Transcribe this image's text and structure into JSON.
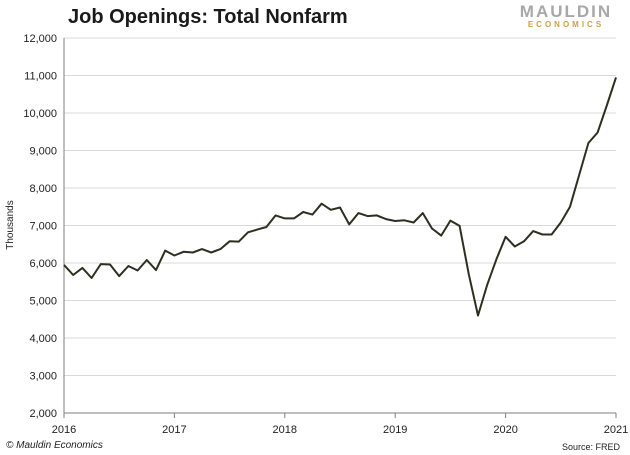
{
  "header": {
    "title": "Job Openings: Total Nonfarm",
    "logo_top": "MAULDIN",
    "logo_bottom": "ECONOMICS"
  },
  "footer": {
    "copyright": "© Mauldin Economics",
    "source": "Source: FRED"
  },
  "colors": {
    "line": "#2b3020",
    "grid": "#d9d9d9",
    "axis": "#7f7f7f",
    "logo_gray": "#a8a8a8",
    "logo_gold": "#c9a24a"
  },
  "chart_data": {
    "type": "line",
    "title": "Job Openings: Total Nonfarm",
    "xlabel": "",
    "ylabel": "Thousands",
    "ylim": [
      2000,
      12000
    ],
    "xlim": [
      2016.0,
      2021.0
    ],
    "yticks": [
      "2,000",
      "3,000",
      "4,000",
      "5,000",
      "6,000",
      "7,000",
      "8,000",
      "9,000",
      "10,000",
      "11,000",
      "12,000"
    ],
    "xticks": [
      "2016",
      "2017",
      "2018",
      "2019",
      "2020",
      "2021"
    ],
    "grid": true,
    "legend": "none",
    "series": [
      {
        "x": [
          "2016-01",
          "2016-02",
          "2016-03",
          "2016-04",
          "2016-05",
          "2016-06",
          "2016-07",
          "2016-08",
          "2016-09",
          "2016-10",
          "2016-11",
          "2016-12",
          "2017-01",
          "2017-02",
          "2017-03",
          "2017-04",
          "2017-05",
          "2017-06",
          "2017-07",
          "2017-08",
          "2017-09",
          "2017-10",
          "2017-11",
          "2017-12",
          "2018-01",
          "2018-02",
          "2018-03",
          "2018-04",
          "2018-05",
          "2018-06",
          "2018-07",
          "2018-08",
          "2018-09",
          "2018-10",
          "2018-11",
          "2018-12",
          "2019-01",
          "2019-02",
          "2019-03",
          "2019-04",
          "2019-05",
          "2019-06",
          "2019-07",
          "2019-08",
          "2019-09",
          "2019-10",
          "2019-11",
          "2019-12",
          "2020-01",
          "2020-02",
          "2020-03",
          "2020-04",
          "2020-05",
          "2020-06",
          "2020-07",
          "2020-08",
          "2020-09",
          "2020-10",
          "2020-11",
          "2020-12",
          "2021-01"
        ],
        "values": [
          5950,
          5680,
          5870,
          5600,
          5970,
          5960,
          5650,
          5920,
          5800,
          6080,
          5810,
          6330,
          6200,
          6300,
          6280,
          6370,
          6280,
          6370,
          6580,
          6570,
          6820,
          6890,
          6960,
          7270,
          7190,
          7190,
          7360,
          7290,
          7580,
          7420,
          7480,
          7030,
          7330,
          7250,
          7270,
          7170,
          7120,
          7140,
          7080,
          7330,
          6920,
          6730,
          7130,
          6990,
          5700,
          4600,
          5420,
          6100,
          6700,
          6440,
          6580,
          6850,
          6760,
          6760,
          7080,
          7500,
          8350,
          9200,
          9480,
          10200,
          10950
        ]
      }
    ]
  }
}
